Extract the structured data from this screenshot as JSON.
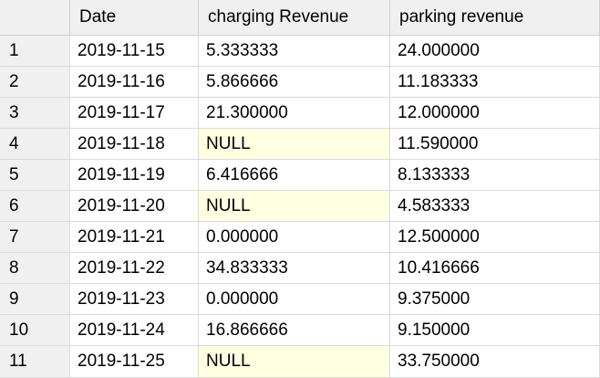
{
  "grid": {
    "columns": [
      "",
      "Date",
      "charging Revenue",
      "parking revenue"
    ],
    "rows": [
      {
        "index": "1",
        "date": "2019-11-15",
        "charging": "5.333333",
        "parking": "24.000000",
        "charging_null": false
      },
      {
        "index": "2",
        "date": "2019-11-16",
        "charging": "5.866666",
        "parking": "11.183333",
        "charging_null": false
      },
      {
        "index": "3",
        "date": "2019-11-17",
        "charging": "21.300000",
        "parking": "12.000000",
        "charging_null": false
      },
      {
        "index": "4",
        "date": "2019-11-18",
        "charging": "NULL",
        "parking": "11.590000",
        "charging_null": true
      },
      {
        "index": "5",
        "date": "2019-11-19",
        "charging": "6.416666",
        "parking": "8.133333",
        "charging_null": false
      },
      {
        "index": "6",
        "date": "2019-11-20",
        "charging": "NULL",
        "parking": "4.583333",
        "charging_null": true
      },
      {
        "index": "7",
        "date": "2019-11-21",
        "charging": "0.000000",
        "parking": "12.500000",
        "charging_null": false
      },
      {
        "index": "8",
        "date": "2019-11-22",
        "charging": "34.833333",
        "parking": "10.416666",
        "charging_null": false
      },
      {
        "index": "9",
        "date": "2019-11-23",
        "charging": "0.000000",
        "parking": "9.375000",
        "charging_null": false
      },
      {
        "index": "10",
        "date": "2019-11-24",
        "charging": "16.866666",
        "parking": "9.150000",
        "charging_null": false
      },
      {
        "index": "11",
        "date": "2019-11-25",
        "charging": "NULL",
        "parking": "33.750000",
        "charging_null": true
      }
    ]
  },
  "colors": {
    "header_bg": "#f0f0f0",
    "null_bg": "#ffffe1",
    "gridline": "#dadada"
  }
}
